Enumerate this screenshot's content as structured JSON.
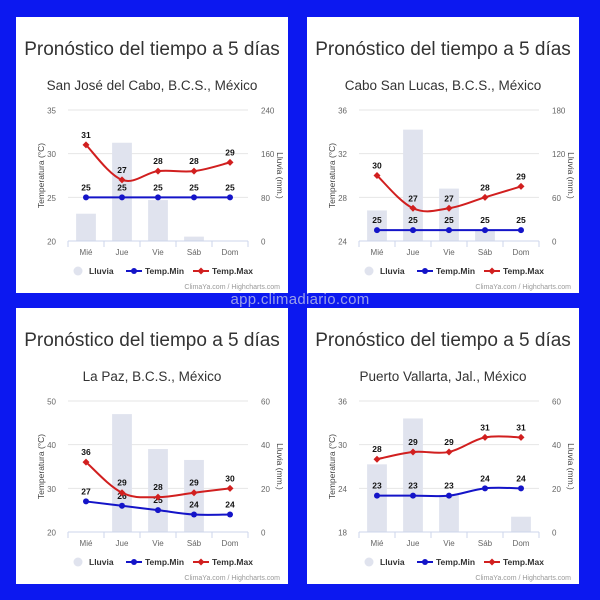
{
  "site_watermark": "app.climadiario.com",
  "colors": {
    "rain": "#e0e3ee",
    "tmin": "#1414c8",
    "tmax": "#d11f1f",
    "axis": "#666",
    "grid": "#e6e6e6"
  },
  "chart_data": [
    {
      "type": "bar+line",
      "title": "Pronóstico del tiempo a 5 días",
      "subtitle": "San José del Cabo, B.C.S., México",
      "categories": [
        "Mié",
        "Jue",
        "Vie",
        "Sáb",
        "Dom"
      ],
      "ylabel": "Temperatura (°C)",
      "y2label": "Lluvia (mm.)",
      "ylim": [
        20,
        35
      ],
      "yticks": [
        20,
        25,
        30,
        35
      ],
      "y2lim": [
        0,
        240
      ],
      "y2ticks": [
        0,
        80,
        160,
        240
      ],
      "series": [
        {
          "name": "Lluvia",
          "type": "bar",
          "axis": "right",
          "values": [
            50,
            180,
            75,
            8,
            0
          ]
        },
        {
          "name": "Temp.Min",
          "type": "line",
          "values": [
            25,
            25,
            25,
            25,
            25
          ]
        },
        {
          "name": "Temp.Max",
          "type": "line",
          "values": [
            31,
            27,
            28,
            28,
            29
          ]
        }
      ],
      "credit": "ClimaYa.com / Highcharts.com"
    },
    {
      "type": "bar+line",
      "title": "Pronóstico del tiempo a 5 días",
      "subtitle": "Cabo San Lucas, B.C.S., México",
      "categories": [
        "Mié",
        "Jue",
        "Vie",
        "Sáb",
        "Dom"
      ],
      "ylabel": "Temperatura (°C)",
      "y2label": "Lluvia (mm.)",
      "ylim": [
        24,
        36
      ],
      "yticks": [
        24,
        28,
        32,
        36
      ],
      "y2lim": [
        0,
        180
      ],
      "y2ticks": [
        0,
        60,
        120,
        180
      ],
      "series": [
        {
          "name": "Lluvia",
          "type": "bar",
          "axis": "right",
          "values": [
            42,
            153,
            72,
            15,
            0
          ]
        },
        {
          "name": "Temp.Min",
          "type": "line",
          "values": [
            25,
            25,
            25,
            25,
            25
          ]
        },
        {
          "name": "Temp.Max",
          "type": "line",
          "values": [
            30,
            27,
            27,
            28,
            29
          ]
        }
      ],
      "credit": "ClimaYa.com / Highcharts.com"
    },
    {
      "type": "bar+line",
      "title": "Pronóstico del tiempo a 5 días",
      "subtitle": "La Paz, B.C.S., México",
      "categories": [
        "Mié",
        "Jue",
        "Vie",
        "Sáb",
        "Dom"
      ],
      "ylabel": "Temperatura (°C)",
      "y2label": "Lluvia (mm.)",
      "ylim": [
        20,
        50
      ],
      "yticks": [
        20,
        30,
        40,
        50
      ],
      "y2lim": [
        0,
        60
      ],
      "y2ticks": [
        0,
        20,
        40,
        60
      ],
      "series": [
        {
          "name": "Lluvia",
          "type": "bar",
          "axis": "right",
          "values": [
            0,
            54,
            38,
            33,
            0
          ]
        },
        {
          "name": "Temp.Min",
          "type": "line",
          "values": [
            27,
            26,
            25,
            24,
            24
          ]
        },
        {
          "name": "Temp.Max",
          "type": "line",
          "values": [
            36,
            29,
            28,
            29,
            30
          ]
        }
      ],
      "credit": "ClimaYa.com / Highcharts.com"
    },
    {
      "type": "bar+line",
      "title": "Pronóstico del tiempo a 5 días",
      "subtitle": "Puerto Vallarta, Jal., México",
      "categories": [
        "Mié",
        "Jue",
        "Vie",
        "Sáb",
        "Dom"
      ],
      "ylabel": "Temperatura (°C)",
      "y2label": "Lluvia (mm.)",
      "ylim": [
        18,
        36
      ],
      "yticks": [
        18,
        24,
        30,
        36
      ],
      "y2lim": [
        0,
        60
      ],
      "y2ticks": [
        0,
        20,
        40,
        60
      ],
      "series": [
        {
          "name": "Lluvia",
          "type": "bar",
          "axis": "right",
          "values": [
            31,
            52,
            17,
            0,
            7
          ]
        },
        {
          "name": "Temp.Min",
          "type": "line",
          "values": [
            23,
            23,
            23,
            24,
            24
          ]
        },
        {
          "name": "Temp.Max",
          "type": "line",
          "values": [
            28,
            29,
            29,
            31,
            31
          ]
        }
      ],
      "credit": "ClimaYa.com / Highcharts.com"
    }
  ]
}
